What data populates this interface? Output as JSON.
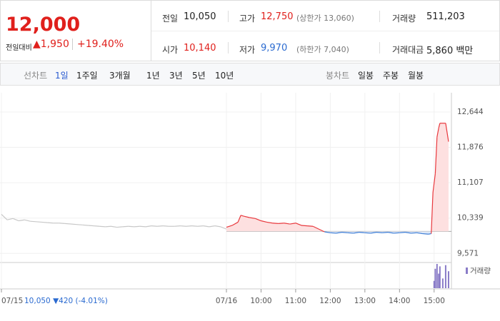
{
  "header": {
    "price": "12,000",
    "change_label": "전일대비",
    "change": "▲1,950",
    "change_rate": "+19.40%",
    "stats": [
      {
        "label": "전일",
        "value": "10,050"
      },
      {
        "label": "고가",
        "value": "12,750",
        "note": "(상한가 13,060)"
      },
      {
        "label": "거래량",
        "value": "511,203"
      },
      {
        "label": "시가",
        "value": "10,140"
      },
      {
        "label": "저가",
        "value": "9,970",
        "note": "(하한가 7,040)"
      },
      {
        "label": "거래대금",
        "value": "5,860 백만"
      }
    ]
  },
  "tabs": {
    "line_label": "선차트",
    "line_tabs": [
      "1일",
      "1주일",
      "3개월",
      "1년",
      "3년",
      "5년",
      "10년"
    ],
    "candle_label": "봉차트",
    "candle_tabs": [
      "일봉",
      "주봉",
      "월봉"
    ]
  },
  "status": "10,050 ▼420 (-4.01%)",
  "chart_data": {
    "type": "line",
    "xlim": [
      0,
      780
    ],
    "ylim": [
      9420,
      12830
    ],
    "baseline": 10050,
    "grid": true,
    "yticks": [
      {
        "value": 12644,
        "label": "12,644"
      },
      {
        "value": 11876,
        "label": "11,876"
      },
      {
        "value": 11107,
        "label": "11,107"
      },
      {
        "value": 10339,
        "label": "10,339"
      },
      {
        "value": 9571,
        "label": "9,571"
      }
    ],
    "xticks": [
      {
        "value": 0,
        "label": "07/15"
      },
      {
        "value": 390,
        "label": "07/16"
      },
      {
        "value": 450,
        "label": "10:00"
      },
      {
        "value": 510,
        "label": "11:00"
      },
      {
        "value": 570,
        "label": "12:00"
      },
      {
        "value": 630,
        "label": "13:00"
      },
      {
        "value": 690,
        "label": "14:00"
      },
      {
        "value": 750,
        "label": "15:00"
      }
    ],
    "series": [
      {
        "color": "#c8c8c8",
        "x": [
          0,
          10,
          20,
          30,
          40,
          50,
          60,
          70,
          80,
          90,
          100,
          110,
          120,
          130,
          140,
          150,
          160,
          170,
          180,
          190,
          200,
          210,
          220,
          230,
          240,
          250,
          260,
          270,
          280,
          290,
          300,
          310,
          320,
          330,
          340,
          350,
          360,
          370,
          380,
          390
        ],
        "values": [
          10420,
          10300,
          10330,
          10280,
          10300,
          10270,
          10260,
          10250,
          10240,
          10230,
          10230,
          10220,
          10210,
          10200,
          10190,
          10180,
          10170,
          10160,
          10150,
          10160,
          10140,
          10150,
          10160,
          10150,
          10160,
          10150,
          10170,
          10160,
          10170,
          10160,
          10160,
          10170,
          10160,
          10170,
          10160,
          10170,
          10150,
          10170,
          10150,
          10100
        ]
      },
      {
        "color": "#e8383d",
        "down_color": "#3a7bd5",
        "x": [
          390,
          400,
          410,
          415,
          420,
          430,
          440,
          450,
          460,
          470,
          480,
          490,
          500,
          510,
          520,
          530,
          540,
          550,
          560,
          570,
          580,
          590,
          600,
          610,
          620,
          630,
          640,
          650,
          660,
          670,
          680,
          690,
          700,
          710,
          720,
          730,
          740,
          745,
          748,
          750,
          752,
          755,
          758,
          760,
          770,
          775
        ],
        "values": [
          10140,
          10180,
          10250,
          10400,
          10380,
          10350,
          10330,
          10280,
          10250,
          10230,
          10220,
          10230,
          10210,
          10230,
          10180,
          10170,
          10160,
          10100,
          10040,
          10020,
          10010,
          10030,
          10020,
          10010,
          10030,
          10020,
          10010,
          10030,
          10020,
          10030,
          10010,
          10020,
          10030,
          10010,
          10020,
          10000,
          9990,
          10000,
          10900,
          11100,
          11300,
          12100,
          12300,
          12400,
          12400,
          12000
        ]
      }
    ],
    "volume": {
      "name": "거래량",
      "color": "#8a7cc8",
      "ylim": [
        0,
        100
      ],
      "x": [
        750,
        752,
        755,
        758,
        760,
        765,
        770,
        775
      ],
      "values": [
        30,
        80,
        100,
        60,
        90,
        40,
        95,
        70
      ]
    }
  }
}
